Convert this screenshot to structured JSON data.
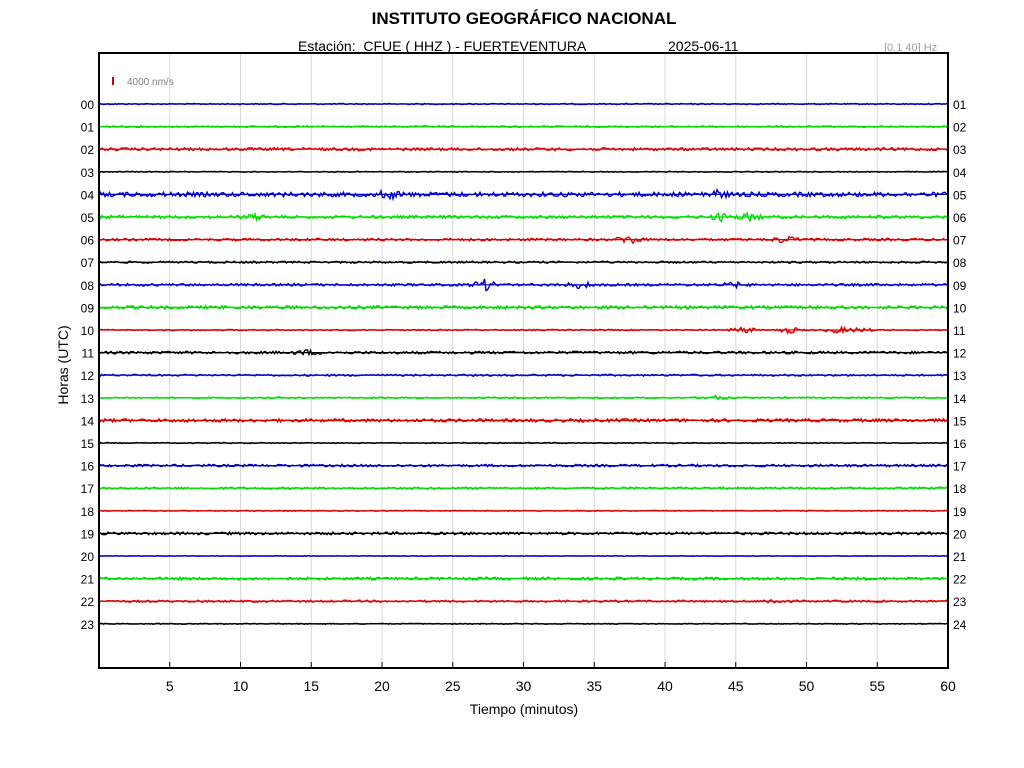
{
  "header": {
    "title": "INSTITUTO GEOGRÁFICO NACIONAL",
    "station": "Estación:  CFUE ( HHZ ) - FUERTEVENTURA",
    "date": "2025-06-11",
    "filter": "[0.1 40] Hz"
  },
  "chart_data": {
    "type": "line",
    "subtype": "helicorder",
    "xlabel": "Tiempo (minutos)",
    "ylabel": "Horas (UTC)",
    "xlim": [
      0,
      60
    ],
    "xticks": [
      "5",
      "10",
      "15",
      "20",
      "25",
      "30",
      "35",
      "40",
      "45",
      "50",
      "55",
      "60"
    ],
    "grid": "vertical",
    "scale_label": "4000 nm/s",
    "scale_color": "#cc0000",
    "colors": [
      "#0000cc",
      "#00dd00",
      "#dd0000",
      "#000000"
    ],
    "left_labels": [
      "00",
      "01",
      "02",
      "03",
      "04",
      "05",
      "06",
      "07",
      "08",
      "09",
      "10",
      "11",
      "12",
      "13",
      "14",
      "15",
      "16",
      "17",
      "18",
      "19",
      "20",
      "21",
      "22",
      "23"
    ],
    "right_labels": [
      "01",
      "02",
      "03",
      "04",
      "05",
      "06",
      "07",
      "08",
      "09",
      "10",
      "11",
      "12",
      "13",
      "14",
      "15",
      "16",
      "17",
      "18",
      "19",
      "20",
      "21",
      "22",
      "23",
      "24"
    ],
    "noise_levels": [
      0.6,
      0.8,
      1.4,
      0.5,
      2.2,
      1.5,
      1.2,
      1.0,
      1.2,
      1.6,
      0.6,
      1.3,
      0.9,
      0.8,
      1.6,
      0.5,
      1.2,
      1.1,
      0.5,
      1.3,
      0.3,
      1.4,
      1.0,
      0.5
    ],
    "events": [
      {
        "hour": 4,
        "minute": 20.5,
        "amplitude": 3
      },
      {
        "hour": 4,
        "minute": 43.5,
        "amplitude": 3
      },
      {
        "hour": 5,
        "minute": 11,
        "amplitude": 2
      },
      {
        "hour": 5,
        "minute": 44,
        "amplitude": 3
      },
      {
        "hour": 5,
        "minute": 46,
        "amplitude": 3
      },
      {
        "hour": 6,
        "minute": 37.5,
        "amplitude": 4
      },
      {
        "hour": 6,
        "minute": 48.5,
        "amplitude": 3
      },
      {
        "hour": 8,
        "minute": 27.3,
        "amplitude": 5
      },
      {
        "hour": 8,
        "minute": 34,
        "amplitude": 3
      },
      {
        "hour": 8,
        "minute": 45,
        "amplitude": 2
      },
      {
        "hour": 10,
        "minute": 45.5,
        "amplitude": 3
      },
      {
        "hour": 10,
        "minute": 48.8,
        "amplitude": 3
      },
      {
        "hour": 10,
        "minute": 52.2,
        "amplitude": 3
      },
      {
        "hour": 10,
        "minute": 53.8,
        "amplitude": 2
      },
      {
        "hour": 11,
        "minute": 14.7,
        "amplitude": 2
      },
      {
        "hour": 13,
        "minute": 43.5,
        "amplitude": 2
      },
      {
        "hour": 22,
        "minute": 47.8,
        "amplitude": 2
      }
    ]
  }
}
